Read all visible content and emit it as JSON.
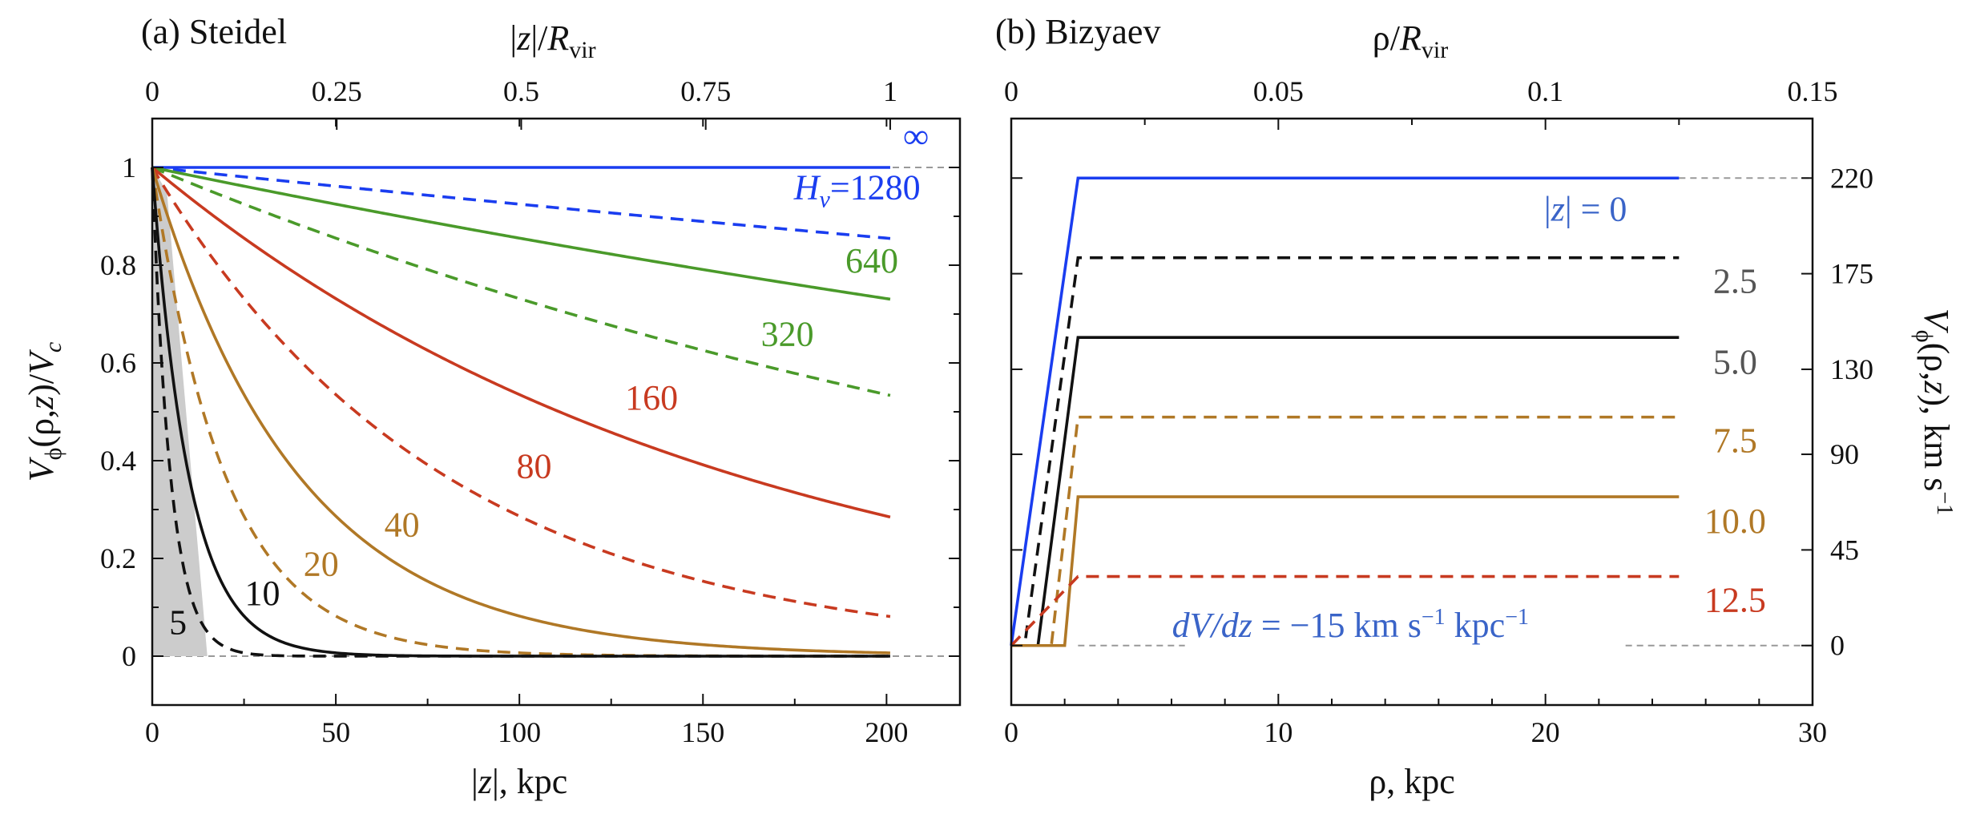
{
  "chart_data": [
    {
      "type": "line",
      "title": "(a) Steidel",
      "xlabel": "|z|, kpc",
      "ylabel": "Vϕ(ρ,z)/Vc",
      "top_xlabel": "|z|/Rvir",
      "xlim": [
        0,
        220
      ],
      "ylim": [
        -0.1,
        1.1
      ],
      "x_ticks": [
        "0",
        "50",
        "100",
        "150",
        "200"
      ],
      "y_ticks": [
        "0",
        "0.2",
        "0.4",
        "0.6",
        "0.8",
        "1"
      ],
      "top_ticks": [
        "0",
        "0.25",
        "0.5",
        "0.75",
        "1"
      ],
      "top_tick_positions_kpc": [
        0,
        50.25,
        100.5,
        150.75,
        201
      ],
      "model": "Vphi/Vc = exp(-|z|/Hv)",
      "x_range_kpc": [
        0,
        201
      ],
      "series": [
        {
          "label": "∞",
          "Hv": null,
          "color": "#1a3df0",
          "dash": false,
          "values_at_z200": 1.0
        },
        {
          "label": "Hv=1280",
          "Hv": 1280,
          "color": "#1a3df0",
          "dash": true,
          "values_at_z200": 0.855
        },
        {
          "label": "640",
          "Hv": 640,
          "color": "#4a9a2a",
          "dash": false,
          "values_at_z200": 0.731
        },
        {
          "label": "320",
          "Hv": 320,
          "color": "#4a9a2a",
          "dash": true,
          "values_at_z200": 0.535
        },
        {
          "label": "160",
          "Hv": 160,
          "color": "#c83a20",
          "dash": false,
          "values_at_z200": 0.287
        },
        {
          "label": "80",
          "Hv": 80,
          "color": "#c83a20",
          "dash": true,
          "values_at_z200": 0.082
        },
        {
          "label": "40",
          "Hv": 40,
          "color": "#b07826",
          "dash": false,
          "values_at_z200": 0.007
        },
        {
          "label": "20",
          "Hv": 20,
          "color": "#b07826",
          "dash": true,
          "values_at_z200": 0.0
        },
        {
          "label": "10",
          "Hv": 10,
          "color": "#111111",
          "dash": false,
          "values_at_z200": 0.0
        },
        {
          "label": "5",
          "Hv": 5,
          "color": "#111111",
          "dash": true,
          "values_at_z200": 0.0
        }
      ],
      "shaded_region": {
        "x": [
          0,
          15
        ],
        "y_top_at_x0": 1.0,
        "color": "#cccccc"
      }
    },
    {
      "type": "line",
      "title": "(b) Bizyaev",
      "xlabel": "ρ, kpc",
      "ylabel_right": "Vϕ(ρ,z), km s−1",
      "top_xlabel": "ρ/Rvir",
      "xlim": [
        0,
        30
      ],
      "ylim": [
        -28,
        248
      ],
      "x_ticks": [
        "0",
        "10",
        "20",
        "30"
      ],
      "right_ticks": [
        "0",
        "45",
        "90",
        "130",
        "175",
        "220"
      ],
      "top_ticks": [
        "0",
        "0.05",
        "0.1",
        "0.15"
      ],
      "top_tick_positions_kpc": [
        0,
        10,
        20,
        30
      ],
      "annotation": "dV/dz = −15 km s−1 kpc−1",
      "series": [
        {
          "label": "|z| = 0",
          "color": "#1a3df0",
          "dash": false,
          "x": [
            0,
            2.5,
            25
          ],
          "y": [
            0,
            220,
            220
          ]
        },
        {
          "label": "2.5",
          "color": "#111111",
          "dash": true,
          "x": [
            0,
            0.5,
            2.5,
            25
          ],
          "y": [
            0,
            0,
            182.5,
            182.5
          ]
        },
        {
          "label": "5.0",
          "color": "#111111",
          "dash": false,
          "x": [
            0,
            1.0,
            2.5,
            25
          ],
          "y": [
            0,
            0,
            145,
            145
          ]
        },
        {
          "label": "7.5",
          "color": "#b07826",
          "dash": true,
          "x": [
            0,
            1.5,
            2.5,
            25
          ],
          "y": [
            0,
            0,
            107.5,
            107.5
          ]
        },
        {
          "label": "10.0",
          "color": "#b07826",
          "dash": false,
          "x": [
            0,
            2.0,
            2.5,
            25
          ],
          "y": [
            0,
            0,
            70,
            70
          ]
        },
        {
          "label": "12.5",
          "color": "#c83a20",
          "dash": true,
          "x": [
            0,
            2.5,
            25
          ],
          "y": [
            0,
            32.5,
            32.5
          ]
        }
      ]
    }
  ]
}
